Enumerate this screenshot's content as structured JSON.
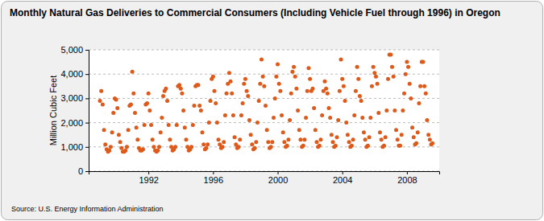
{
  "chart_data": {
    "type": "scatter",
    "title": "Monthly Natural Gas Deliveries to Commercial Consumers (Including Vehicle Fuel through 1996) in Oregon",
    "y_label": "Million Cubic Feet",
    "source": "Source: U.S. Energy Information Administration",
    "color": "#dd5a1a",
    "marker": "circle",
    "grid": true,
    "xlim": [
      1988.3,
      2010
    ],
    "xticks": [
      1992,
      1996,
      2000,
      2004,
      2008
    ],
    "ylim": [
      0,
      5000
    ],
    "yticks": [
      0,
      {
        "value": 1000,
        "label": "1,000"
      },
      {
        "value": 2000,
        "label": "2,000"
      },
      {
        "value": 3000,
        "label": "3,000"
      },
      {
        "value": 4000,
        "label": "4,000"
      },
      {
        "value": 5000,
        "label": "5,000"
      }
    ],
    "x": [
      1989,
      1989.083,
      1989.167,
      1989.25,
      1989.333,
      1989.417,
      1989.5,
      1989.583,
      1989.667,
      1989.75,
      1989.833,
      1989.917,
      1990,
      1990.083,
      1990.167,
      1990.25,
      1990.333,
      1990.417,
      1990.5,
      1990.583,
      1990.667,
      1990.75,
      1990.833,
      1990.917,
      1991,
      1991.083,
      1991.167,
      1991.25,
      1991.333,
      1991.417,
      1991.5,
      1991.583,
      1991.667,
      1991.75,
      1991.833,
      1991.917,
      1992,
      1992.083,
      1992.167,
      1992.25,
      1992.333,
      1992.417,
      1992.5,
      1992.583,
      1992.667,
      1992.75,
      1992.833,
      1992.917,
      1993,
      1993.083,
      1993.167,
      1993.25,
      1993.333,
      1993.417,
      1993.5,
      1993.583,
      1993.667,
      1993.75,
      1993.833,
      1993.917,
      1994,
      1994.083,
      1994.167,
      1994.25,
      1994.333,
      1994.417,
      1994.5,
      1994.583,
      1994.667,
      1994.75,
      1994.833,
      1994.917,
      1995,
      1995.083,
      1995.167,
      1995.25,
      1995.333,
      1995.417,
      1995.5,
      1995.583,
      1995.667,
      1995.75,
      1995.833,
      1995.917,
      1996,
      1996.083,
      1996.167,
      1996.25,
      1996.333,
      1996.417,
      1996.5,
      1996.583,
      1996.667,
      1996.75,
      1996.833,
      1996.917,
      1997,
      1997.083,
      1997.167,
      1997.25,
      1997.333,
      1997.417,
      1997.5,
      1997.583,
      1997.667,
      1997.75,
      1997.833,
      1997.917,
      1998,
      1998.083,
      1998.167,
      1998.25,
      1998.333,
      1998.417,
      1998.5,
      1998.583,
      1998.667,
      1998.75,
      1998.833,
      1998.917,
      1999,
      1999.083,
      1999.167,
      1999.25,
      1999.333,
      1999.417,
      1999.5,
      1999.583,
      1999.667,
      1999.75,
      1999.833,
      1999.917,
      2000,
      2000.083,
      2000.167,
      2000.25,
      2000.333,
      2000.417,
      2000.5,
      2000.583,
      2000.667,
      2000.75,
      2000.833,
      2000.917,
      2001,
      2001.083,
      2001.167,
      2001.25,
      2001.333,
      2001.417,
      2001.5,
      2001.583,
      2001.667,
      2001.75,
      2001.833,
      2001.917,
      2002,
      2002.083,
      2002.167,
      2002.25,
      2002.333,
      2002.417,
      2002.5,
      2002.583,
      2002.667,
      2002.75,
      2002.833,
      2002.917,
      2003,
      2003.083,
      2003.167,
      2003.25,
      2003.333,
      2003.417,
      2003.5,
      2003.583,
      2003.667,
      2003.75,
      2003.833,
      2003.917,
      2004,
      2004.083,
      2004.167,
      2004.25,
      2004.333,
      2004.417,
      2004.5,
      2004.583,
      2004.667,
      2004.75,
      2004.833,
      2004.917,
      2005,
      2005.083,
      2005.167,
      2005.25,
      2005.333,
      2005.417,
      2005.5,
      2005.583,
      2005.667,
      2005.75,
      2005.833,
      2005.917,
      2006,
      2006.083,
      2006.167,
      2006.25,
      2006.333,
      2006.417,
      2006.5,
      2006.583,
      2006.667,
      2006.75,
      2006.833,
      2006.917,
      2007,
      2007.083,
      2007.167,
      2007.25,
      2007.333,
      2007.417,
      2007.5,
      2007.583,
      2007.667,
      2007.75,
      2007.833,
      2007.917,
      2008,
      2008.083,
      2008.167,
      2008.25,
      2008.333,
      2008.417,
      2008.5,
      2008.583,
      2008.667,
      2008.75,
      2008.833,
      2008.917,
      2009,
      2009.083,
      2009.167,
      2009.25,
      2009.333,
      2009.417,
      2009.5,
      2009.583
    ],
    "values": [
      2900,
      3300,
      2750,
      1700,
      1100,
      900,
      800,
      850,
      1000,
      1600,
      2400,
      3000,
      2950,
      2600,
      1500,
      1200,
      950,
      800,
      800,
      850,
      1000,
      1700,
      2700,
      2750,
      4100,
      3200,
      2400,
      1800,
      1300,
      950,
      850,
      850,
      900,
      1900,
      2750,
      2800,
      3200,
      2500,
      1900,
      1300,
      1000,
      850,
      800,
      850,
      1000,
      1600,
      2200,
      3100,
      3300,
      3400,
      2900,
      1900,
      1300,
      1000,
      850,
      900,
      1000,
      1900,
      3500,
      3550,
      3400,
      3200,
      2500,
      1800,
      1300,
      1000,
      850,
      900,
      1000,
      1900,
      2700,
      3500,
      3550,
      3550,
      2700,
      2500,
      1600,
      1100,
      900,
      950,
      1100,
      2000,
      2900,
      3800,
      3900,
      3300,
      2800,
      2000,
      1300,
      1100,
      950,
      1000,
      1200,
      2300,
      3200,
      3600,
      4050,
      3700,
      3200,
      2300,
      1400,
      1100,
      950,
      1000,
      1300,
      2300,
      2800,
      3600,
      3800,
      3300,
      3100,
      2100,
      1500,
      1100,
      900,
      950,
      1200,
      2000,
      2900,
      3600,
      4600,
      3900,
      3500,
      2700,
      1700,
      1200,
      950,
      1000,
      1200,
      2200,
      3000,
      3900,
      4400,
      3600,
      3300,
      2300,
      1600,
      1200,
      1000,
      1050,
      1300,
      2100,
      3200,
      4100,
      4300,
      3900,
      3400,
      2500,
      1700,
      1300,
      1000,
      1050,
      1300,
      2200,
      3300,
      4250,
      3800,
      3300,
      3400,
      2600,
      1700,
      1200,
      1000,
      1050,
      1300,
      2300,
      3300,
      3700,
      3400,
      3200,
      2600,
      2200,
      1500,
      1200,
      1000,
      1050,
      1400,
      2100,
      3300,
      4600,
      3800,
      3500,
      2900,
      2000,
      1500,
      1200,
      1000,
      1050,
      1300,
      2300,
      3300,
      4300,
      3800,
      3100,
      2900,
      2200,
      1600,
      1300,
      1000,
      1050,
      1400,
      2200,
      3500,
      4300,
      4050,
      3900,
      3600,
      2400,
      1600,
      1300,
      1000,
      1050,
      1400,
      2500,
      3800,
      4800,
      4800,
      4300,
      3900,
      2500,
      1700,
      1300,
      1050,
      1050,
      1500,
      2500,
      3200,
      4000,
      4500,
      4300,
      3600,
      3000,
      1800,
      1400,
      1100,
      1150,
      1600,
      2800,
      3500,
      4500,
      4500,
      3500,
      3200,
      2100,
      1500,
      1300,
      1100,
      1150
    ]
  }
}
